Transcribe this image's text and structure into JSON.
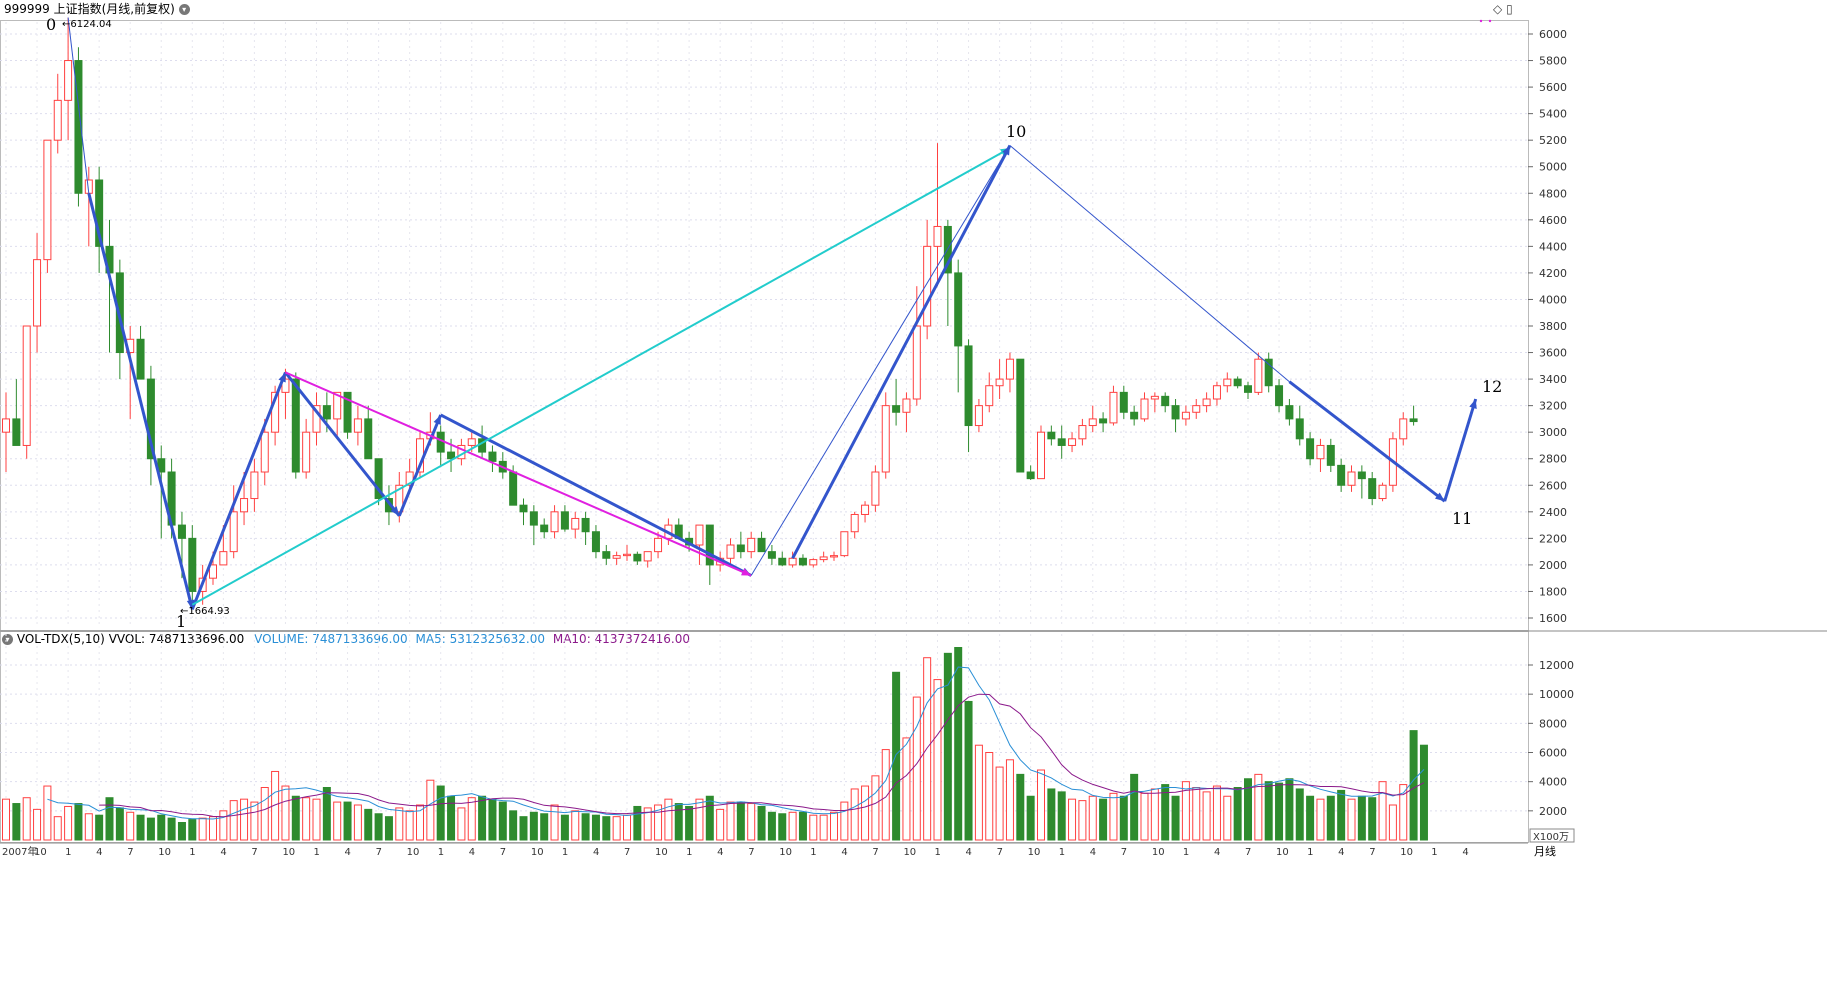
{
  "header": {
    "title": "999999 上证指数(月线,前复权)"
  },
  "window_buttons": [
    "◇",
    "▯"
  ],
  "vol_header": {
    "name": "VOL-TDX(5,10)",
    "vvol": "VVOL: 7487133696.00",
    "volume": "VOLUME: 7487133696.00",
    "ma5": "MA5: 5312325632.00",
    "ma10": "MA10: 4137372416.00"
  },
  "price_axis": [
    "6000",
    "5800",
    "5600",
    "5400",
    "5200",
    "5000",
    "4800",
    "4600",
    "4400",
    "4200",
    "4000",
    "3800",
    "3600",
    "3400",
    "3200",
    "3000",
    "2800",
    "2600",
    "2400",
    "2200",
    "2000",
    "1800",
    "1600"
  ],
  "vol_axis": [
    "12000",
    "10000",
    "8000",
    "6000",
    "4000",
    "2000"
  ],
  "vol_unit": "X100万",
  "period_label": "月线",
  "x_axis_labels": [
    "2007年",
    "10",
    "1",
    "4",
    "7",
    "10",
    "1",
    "4",
    "7",
    "10",
    "1",
    "4",
    "7",
    "10",
    "1",
    "4",
    "7",
    "10",
    "1",
    "4",
    "7",
    "10",
    "1",
    "4",
    "7",
    "10",
    "1",
    "4",
    "7",
    "10",
    "1",
    "4",
    "7",
    "10",
    "1",
    "4",
    "7",
    "10",
    "1",
    "4",
    "7",
    "10",
    "1",
    "4",
    "7",
    "10",
    "1",
    "4"
  ],
  "annotations": {
    "high_label": "6124.04",
    "low_label": "1664.93",
    "wave_labels": [
      "0",
      "1",
      "10",
      "11",
      "12"
    ]
  },
  "colors": {
    "up": "#ff4040",
    "down": "#2e8b2e",
    "wave_blue": "#3355cc",
    "cyan": "#22cccc",
    "magenta": "#e020e0",
    "ma5": "#2a8fd6",
    "ma10": "#8b1a8b"
  },
  "chart_data": {
    "type": "candlestick",
    "title": "999999 上证指数(月线,前复权)",
    "period": "monthly",
    "ylim_price": [
      1500,
      6150
    ],
    "ylim_volume": [
      0,
      13500
    ],
    "grid": true,
    "candles_ohlc": [
      [
        3000,
        3300,
        2700,
        3100
      ],
      [
        3100,
        3400,
        2900,
        2900
      ],
      [
        2900,
        3700,
        2800,
        3800
      ],
      [
        3800,
        4500,
        3600,
        4300
      ],
      [
        4300,
        5100,
        4200,
        5200
      ],
      [
        5200,
        5700,
        5100,
        5500
      ],
      [
        5500,
        6124,
        5200,
        5800
      ],
      [
        5800,
        5900,
        4700,
        4800
      ],
      [
        4800,
        5000,
        4400,
        4900
      ],
      [
        4900,
        5000,
        4200,
        4400
      ],
      [
        4400,
        4600,
        3600,
        4200
      ],
      [
        4200,
        4300,
        3400,
        3600
      ],
      [
        3600,
        3800,
        3100,
        3700
      ],
      [
        3700,
        3800,
        3400,
        3400
      ],
      [
        3400,
        3500,
        2600,
        2800
      ],
      [
        2800,
        2900,
        2200,
        2700
      ],
      [
        2700,
        2800,
        2200,
        2300
      ],
      [
        2300,
        2400,
        1900,
        2200
      ],
      [
        2200,
        2300,
        1665,
        1800
      ],
      [
        1800,
        2000,
        1700,
        1900
      ],
      [
        1900,
        2100,
        1850,
        2000
      ],
      [
        2000,
        2300,
        2000,
        2100
      ],
      [
        2100,
        2600,
        2050,
        2400
      ],
      [
        2400,
        2700,
        2300,
        2500
      ],
      [
        2500,
        2800,
        2400,
        2700
      ],
      [
        2700,
        3100,
        2600,
        3000
      ],
      [
        3000,
        3350,
        2900,
        3300
      ],
      [
        3300,
        3478,
        3100,
        3400
      ],
      [
        3400,
        3450,
        2650,
        2700
      ],
      [
        2700,
        3100,
        2650,
        3000
      ],
      [
        3000,
        3300,
        2900,
        3200
      ],
      [
        3200,
        3300,
        3000,
        3100
      ],
      [
        3100,
        3300,
        2950,
        3300
      ],
      [
        3300,
        3300,
        2950,
        3000
      ],
      [
        3000,
        3200,
        2900,
        3100
      ],
      [
        3100,
        3200,
        2800,
        2800
      ],
      [
        2800,
        2800,
        2450,
        2500
      ],
      [
        2500,
        2600,
        2300,
        2400
      ],
      [
        2400,
        2700,
        2320,
        2600
      ],
      [
        2600,
        2800,
        2550,
        2700
      ],
      [
        2700,
        3000,
        2650,
        2950
      ],
      [
        2950,
        3150,
        2900,
        3000
      ],
      [
        3000,
        3050,
        2750,
        2850
      ],
      [
        2850,
        2950,
        2700,
        2800
      ],
      [
        2800,
        2950,
        2750,
        2900
      ],
      [
        2900,
        3000,
        2850,
        2950
      ],
      [
        2950,
        3050,
        2800,
        2850
      ],
      [
        2850,
        2900,
        2700,
        2780
      ],
      [
        2780,
        2850,
        2650,
        2700
      ],
      [
        2700,
        2750,
        2450,
        2450
      ],
      [
        2450,
        2500,
        2300,
        2400
      ],
      [
        2400,
        2450,
        2150,
        2300
      ],
      [
        2300,
        2350,
        2200,
        2250
      ],
      [
        2250,
        2450,
        2200,
        2400
      ],
      [
        2400,
        2450,
        2250,
        2270
      ],
      [
        2270,
        2400,
        2200,
        2350
      ],
      [
        2350,
        2400,
        2150,
        2250
      ],
      [
        2250,
        2300,
        2050,
        2100
      ],
      [
        2100,
        2150,
        2000,
        2050
      ],
      [
        2050,
        2100,
        2000,
        2070
      ],
      [
        2070,
        2150,
        2030,
        2080
      ],
      [
        2080,
        2100,
        2000,
        2030
      ],
      [
        2030,
        2100,
        1980,
        2100
      ],
      [
        2100,
        2250,
        2050,
        2200
      ],
      [
        2200,
        2350,
        2150,
        2300
      ],
      [
        2300,
        2350,
        2200,
        2200
      ],
      [
        2200,
        2250,
        2100,
        2150
      ],
      [
        2150,
        2300,
        2000,
        2300
      ],
      [
        2300,
        2300,
        1849,
        2000
      ],
      [
        2000,
        2100,
        1950,
        2050
      ],
      [
        2050,
        2200,
        2000,
        2150
      ],
      [
        2150,
        2250,
        2050,
        2100
      ],
      [
        2100,
        2250,
        2050,
        2200
      ],
      [
        2200,
        2250,
        2100,
        2100
      ],
      [
        2100,
        2150,
        2000,
        2050
      ],
      [
        2050,
        2100,
        1990,
        2000
      ],
      [
        2000,
        2100,
        1980,
        2050
      ],
      [
        2050,
        2080,
        1990,
        2000
      ],
      [
        2000,
        2050,
        1980,
        2040
      ],
      [
        2040,
        2100,
        2020,
        2060
      ],
      [
        2060,
        2100,
        2030,
        2070
      ],
      [
        2070,
        2250,
        2060,
        2250
      ],
      [
        2250,
        2400,
        2200,
        2380
      ],
      [
        2380,
        2480,
        2320,
        2450
      ],
      [
        2450,
        2750,
        2400,
        2700
      ],
      [
        2700,
        3300,
        2650,
        3200
      ],
      [
        3200,
        3400,
        3050,
        3150
      ],
      [
        3150,
        3300,
        3000,
        3250
      ],
      [
        3250,
        4100,
        3200,
        3800
      ],
      [
        3800,
        4600,
        3700,
        4400
      ],
      [
        4400,
        5178,
        4100,
        4550
      ],
      [
        4550,
        4600,
        3800,
        4200
      ],
      [
        4200,
        4300,
        3300,
        3650
      ],
      [
        3650,
        3700,
        2850,
        3050
      ],
      [
        3050,
        3250,
        3000,
        3200
      ],
      [
        3200,
        3450,
        3150,
        3350
      ],
      [
        3350,
        3550,
        3250,
        3400
      ],
      [
        3400,
        3600,
        3300,
        3550
      ],
      [
        3550,
        3550,
        2700,
        2700
      ],
      [
        2700,
        2750,
        2640,
        2650
      ],
      [
        2650,
        3050,
        2650,
        3000
      ],
      [
        3000,
        3050,
        2900,
        2950
      ],
      [
        2950,
        3050,
        2800,
        2900
      ],
      [
        2900,
        3000,
        2850,
        2950
      ],
      [
        2950,
        3100,
        2900,
        3050
      ],
      [
        3050,
        3200,
        3000,
        3100
      ],
      [
        3100,
        3150,
        3000,
        3070
      ],
      [
        3070,
        3350,
        3050,
        3300
      ],
      [
        3300,
        3350,
        3100,
        3150
      ],
      [
        3150,
        3200,
        3050,
        3100
      ],
      [
        3100,
        3300,
        3080,
        3250
      ],
      [
        3250,
        3300,
        3150,
        3270
      ],
      [
        3270,
        3300,
        3150,
        3200
      ],
      [
        3200,
        3250,
        3000,
        3100
      ],
      [
        3100,
        3200,
        3050,
        3150
      ],
      [
        3150,
        3250,
        3100,
        3200
      ],
      [
        3200,
        3300,
        3150,
        3250
      ],
      [
        3250,
        3380,
        3200,
        3350
      ],
      [
        3350,
        3450,
        3300,
        3400
      ],
      [
        3400,
        3420,
        3330,
        3350
      ],
      [
        3350,
        3380,
        3250,
        3300
      ],
      [
        3300,
        3600,
        3280,
        3550
      ],
      [
        3550,
        3600,
        3300,
        3350
      ],
      [
        3350,
        3400,
        3150,
        3200
      ],
      [
        3200,
        3250,
        3050,
        3100
      ],
      [
        3100,
        3200,
        2900,
        2950
      ],
      [
        2950,
        3000,
        2750,
        2800
      ],
      [
        2800,
        2950,
        2700,
        2900
      ],
      [
        2900,
        2950,
        2700,
        2750
      ],
      [
        2750,
        2800,
        2550,
        2600
      ],
      [
        2600,
        2750,
        2550,
        2700
      ],
      [
        2700,
        2750,
        2500,
        2650
      ],
      [
        2650,
        2700,
        2450,
        2500
      ],
      [
        2500,
        2620,
        2480,
        2600
      ],
      [
        2600,
        3000,
        2550,
        2950
      ],
      [
        2950,
        3150,
        2900,
        3100
      ],
      [
        3100,
        3200,
        3050,
        3080
      ]
    ],
    "volume_x100m": [
      2800,
      2500,
      2900,
      2100,
      3700,
      1600,
      2300,
      2500,
      1800,
      1700,
      2900,
      2200,
      1900,
      1700,
      1500,
      1700,
      1500,
      1200,
      1400,
      1500,
      1600,
      2000,
      2700,
      2800,
      2600,
      3600,
      4700,
      3700,
      3000,
      2900,
      2800,
      3600,
      2600,
      2600,
      2400,
      2100,
      1800,
      1600,
      2200,
      2000,
      2400,
      4100,
      3700,
      3000,
      2200,
      2900,
      3000,
      2800,
      2600,
      2000,
      1600,
      1900,
      1800,
      2400,
      1700,
      2000,
      1800,
      1700,
      1600,
      1600,
      1700,
      2300,
      2200,
      2400,
      2800,
      2500,
      2300,
      2800,
      3000,
      2100,
      2600,
      2600,
      2500,
      2300,
      1900,
      1800,
      1900,
      1900,
      1700,
      1700,
      1900,
      2600,
      3500,
      3700,
      4400,
      6200,
      11500,
      7000,
      9800,
      12500,
      11000,
      12800,
      13200,
      9500,
      6500,
      6000,
      5000,
      5500,
      4500,
      3000,
      4800,
      3500,
      3300,
      2800,
      2700,
      3000,
      2800,
      3200,
      3000,
      4500,
      3200,
      3500,
      3800,
      3000,
      4000,
      3600,
      3300,
      3700,
      3000,
      3600,
      4200,
      4500,
      4000,
      3900,
      4200,
      3500,
      3000,
      2800,
      3000,
      3400,
      2800,
      3000,
      2900,
      4000,
      2400,
      3800,
      7500,
      6500
    ],
    "waves": [
      {
        "label": "0",
        "value": 6124.04
      },
      {
        "label": "1",
        "value": 1664.93
      },
      {
        "label": "10",
        "value": 5178
      },
      {
        "label": "11",
        "value": 2440
      },
      {
        "label": "12",
        "value": 3280
      }
    ],
    "xlabel": "",
    "ylabel": ""
  }
}
